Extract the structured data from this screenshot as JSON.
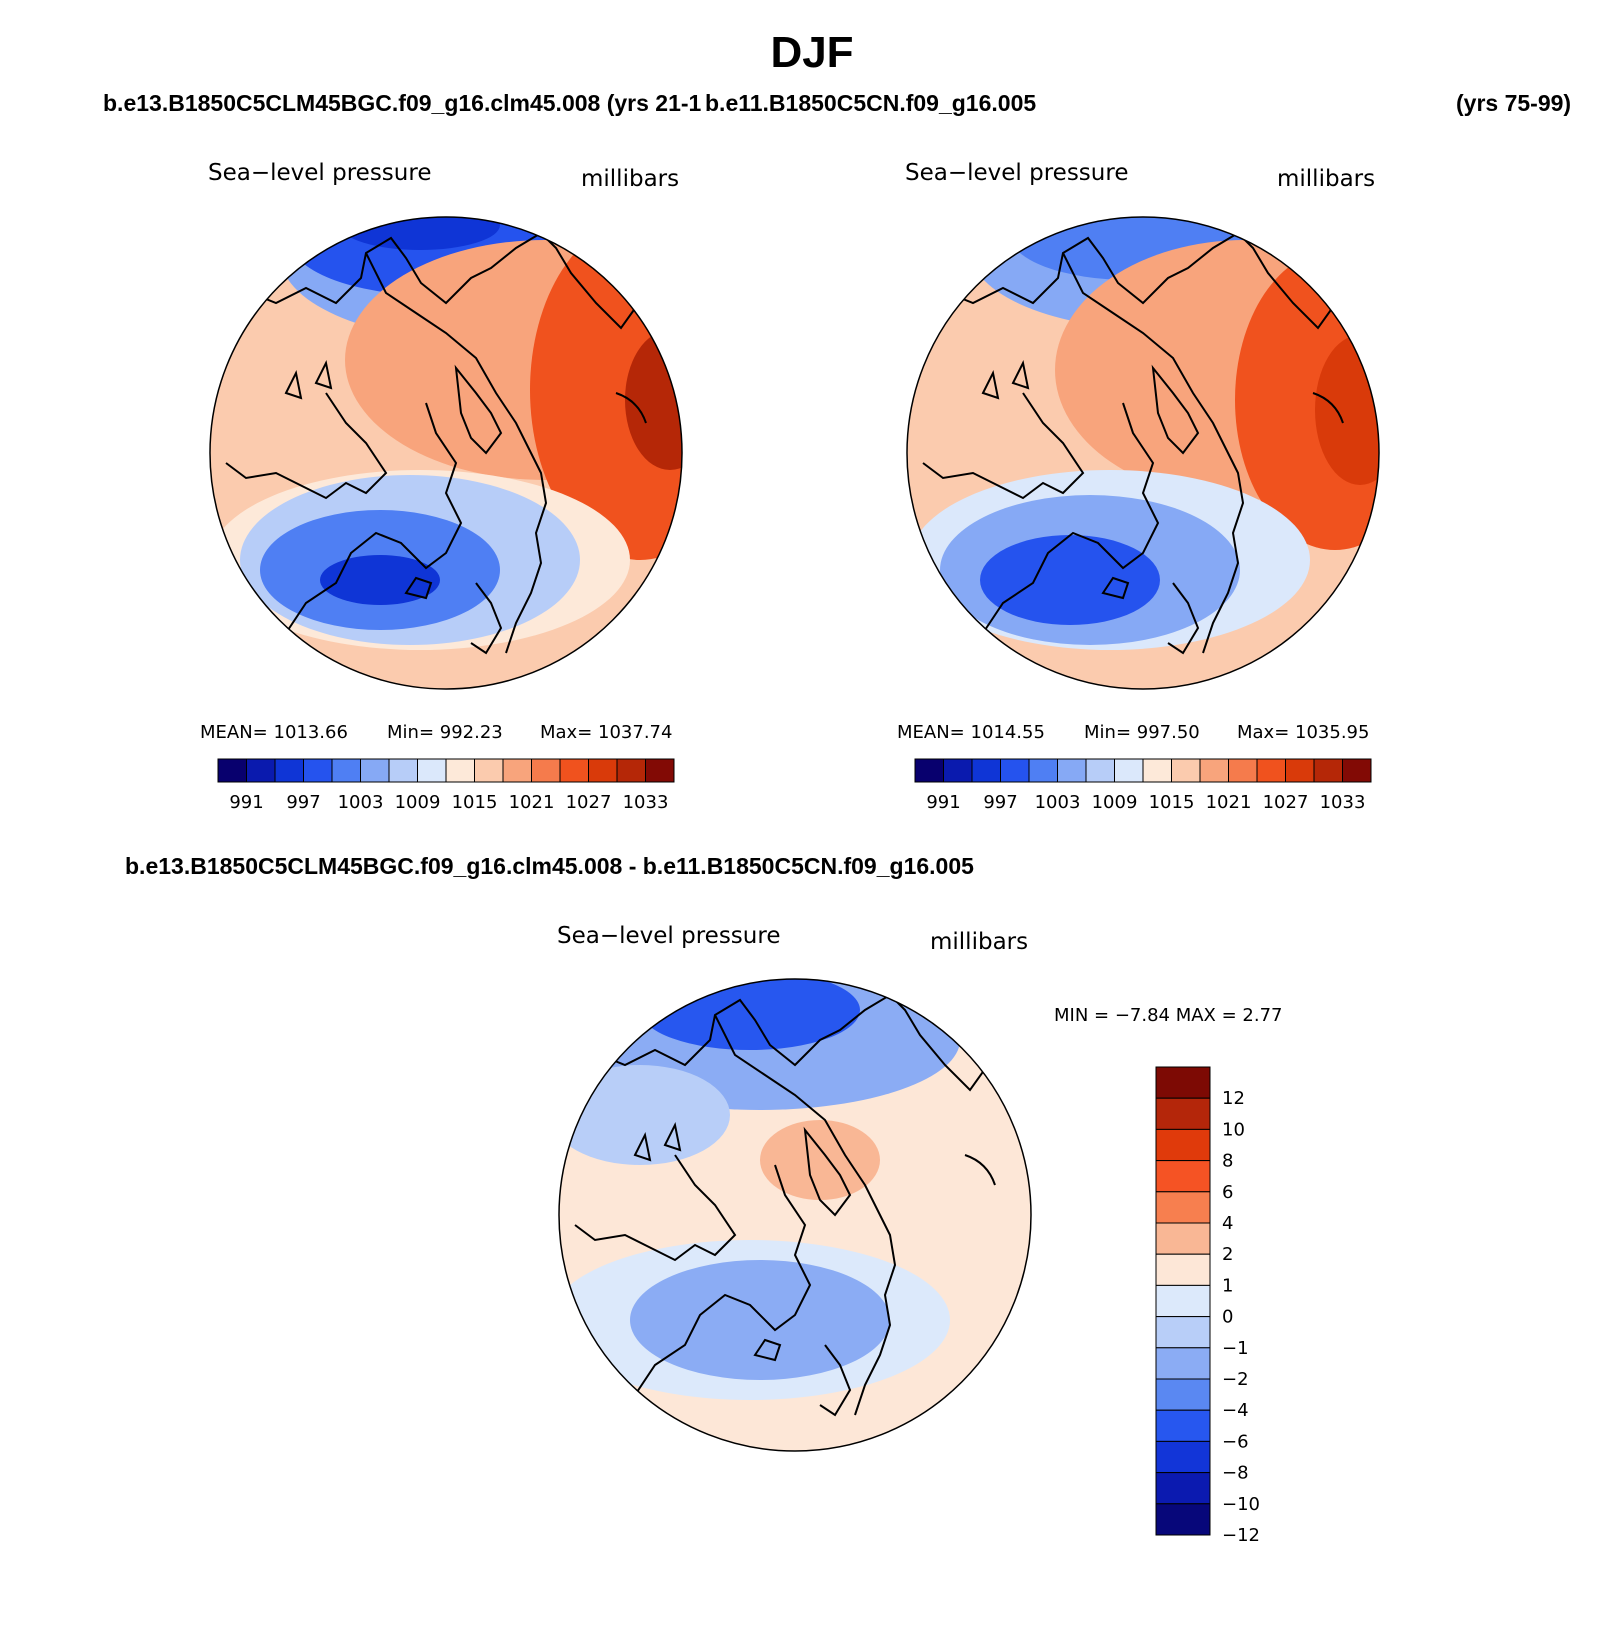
{
  "header": {
    "title": "DJF",
    "case1": "b.e13.B1850C5CLM45BGC.f09_g16.clm45.008 (yrs 21-1",
    "case2": "b.e11.B1850C5CN.f09_g16.005",
    "case2_years": "(yrs 75-99)",
    "diff_title": "b.e13.B1850C5CLM45BGC.f09_g16.clm45.008 - b.e11.B1850C5CN.f09_g16.005"
  },
  "panels": [
    {
      "variable": "Sea−level pressure",
      "units": "millibars",
      "mean_text": "MEAN=  1013.66",
      "min_text": "Min=  992.23",
      "max_text": "Max=  1037.74"
    },
    {
      "variable": "Sea−level pressure",
      "units": "millibars",
      "mean_text": "MEAN=  1014.55",
      "min_text": "Min=  997.50",
      "max_text": "Max=  1035.95"
    }
  ],
  "diff_panel": {
    "variable": "Sea−level pressure",
    "units": "millibars",
    "minmax_text": "MIN =   −7.84  MAX =     2.77"
  },
  "abs_colorbar": {
    "colors": [
      "#08006e",
      "#0a1aae",
      "#0f35d6",
      "#2553ee",
      "#4f7ff3",
      "#86a9f5",
      "#b7cdf8",
      "#dbe8fb",
      "#fde9d9",
      "#fbcbae",
      "#f8a47c",
      "#f57b4c",
      "#f0521e",
      "#d93a0a",
      "#b52707",
      "#820a05"
    ],
    "tick_labels": [
      "991",
      "997",
      "1003",
      "1009",
      "1015",
      "1021",
      "1027",
      "1033"
    ]
  },
  "diff_colorbar": {
    "colors": [
      "#7d0a04",
      "#b4260a",
      "#e03a0b",
      "#f55324",
      "#f77f4f",
      "#f9b795",
      "#fde7d7",
      "#dce9fb",
      "#b8cef8",
      "#8bacf4",
      "#5a88f2",
      "#2757ef",
      "#1235d8",
      "#0b1ab0",
      "#07077a"
    ],
    "tick_labels": [
      "12",
      "10",
      "8",
      "6",
      "4",
      "2",
      "1",
      "0",
      "−1",
      "−2",
      "−4",
      "−6",
      "−8",
      "−10",
      "−12"
    ]
  },
  "map_colors": {
    "low_deep": "#0f35d6",
    "low_mid": "#4f7ff3",
    "low_light": "#b7cdf8",
    "neutral": "#fde9d9",
    "high_light": "#fbcbae",
    "high_mid": "#f8a47c",
    "high_strong": "#f0521e",
    "high_max": "#b52707",
    "diff_neg_deep": "#1235d8",
    "diff_neg_mid": "#8bacf4",
    "diff_neg_light": "#dce9fb",
    "diff_pos_light": "#fde7d7",
    "diff_pos_mid": "#f9b795"
  }
}
